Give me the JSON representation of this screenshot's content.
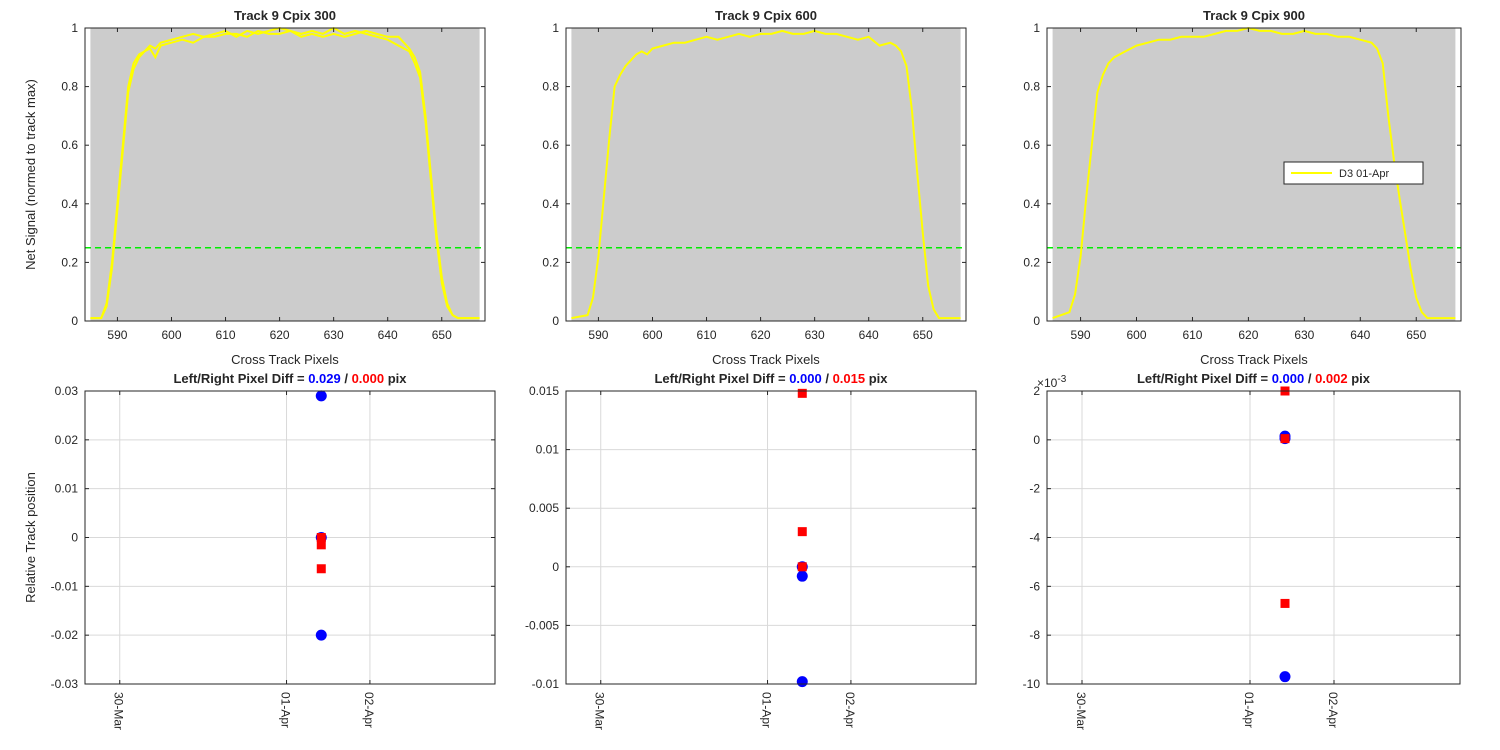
{
  "colors": {
    "signal": "#ffff00",
    "threshold": "#00ee00",
    "band": "#cccccc",
    "left": "#0000ff",
    "right": "#ff0000",
    "grid": "#d9d9d9",
    "axes": "#262626"
  },
  "chart_data": [
    {
      "type": "line",
      "title": "Track 9  Cpix 300",
      "xlabel": "Cross Track Pixels",
      "ylabel": "Net Signal (normed to track max)",
      "xlim": [
        584,
        658
      ],
      "ylim": [
        0,
        1
      ],
      "xticks": [
        590,
        600,
        610,
        620,
        630,
        640,
        650
      ],
      "yticks": [
        0,
        0.2,
        0.4,
        0.6,
        0.8,
        1
      ],
      "tick_labels_y": [
        "0",
        "0.2",
        "0.4",
        "0.6",
        "0.8",
        "1"
      ],
      "signal_band": [
        585,
        657
      ],
      "threshold": 0.25,
      "series": [
        {
          "x": [
            585,
            587,
            588,
            589,
            590,
            591,
            592,
            593,
            594,
            595,
            596,
            597,
            598,
            600,
            602,
            604,
            606,
            608,
            610,
            612,
            614,
            616,
            618,
            620,
            622,
            624,
            626,
            628,
            630,
            632,
            634,
            636,
            638,
            640,
            642,
            643,
            644,
            645,
            646,
            647,
            648,
            649,
            650,
            651,
            652,
            653,
            655,
            657
          ],
          "y": [
            0.01,
            0.01,
            0.06,
            0.2,
            0.4,
            0.6,
            0.8,
            0.88,
            0.91,
            0.92,
            0.93,
            0.9,
            0.94,
            0.95,
            0.96,
            0.95,
            0.97,
            0.97,
            0.98,
            0.98,
            0.97,
            0.99,
            0.98,
            0.98,
            0.99,
            0.97,
            0.98,
            0.97,
            0.98,
            0.97,
            0.98,
            0.99,
            0.98,
            0.97,
            0.97,
            0.95,
            0.93,
            0.9,
            0.85,
            0.7,
            0.5,
            0.3,
            0.15,
            0.06,
            0.02,
            0.01,
            0.01,
            0.01
          ]
        },
        {
          "x": [
            585,
            587,
            588,
            589,
            590,
            591,
            592,
            593,
            594,
            595,
            596,
            597,
            598,
            600,
            602,
            604,
            606,
            608,
            610,
            612,
            614,
            616,
            618,
            620,
            622,
            624,
            626,
            628,
            630,
            632,
            634,
            636,
            638,
            640,
            642,
            643,
            644,
            645,
            646,
            647,
            648,
            649,
            650,
            651,
            652,
            653,
            655,
            657
          ],
          "y": [
            0.01,
            0.01,
            0.05,
            0.18,
            0.38,
            0.58,
            0.78,
            0.86,
            0.9,
            0.92,
            0.94,
            0.93,
            0.95,
            0.96,
            0.97,
            0.98,
            0.97,
            0.98,
            0.99,
            0.97,
            0.99,
            0.98,
            0.99,
            1.0,
            0.99,
            0.98,
            0.99,
            0.98,
            1.0,
            0.98,
            0.99,
            0.98,
            0.97,
            0.96,
            0.94,
            0.93,
            0.92,
            0.88,
            0.83,
            0.68,
            0.48,
            0.28,
            0.13,
            0.05,
            0.02,
            0.01,
            0.01,
            0.01
          ]
        }
      ]
    },
    {
      "type": "line",
      "title": "Track 9  Cpix 600",
      "xlabel": "Cross Track Pixels",
      "ylabel": "",
      "xlim": [
        584,
        658
      ],
      "ylim": [
        0,
        1
      ],
      "xticks": [
        590,
        600,
        610,
        620,
        630,
        640,
        650
      ],
      "yticks": [
        0,
        0.2,
        0.4,
        0.6,
        0.8,
        1
      ],
      "tick_labels_y": [
        "0",
        "0.2",
        "0.4",
        "0.6",
        "0.8",
        "1"
      ],
      "signal_band": [
        585,
        657
      ],
      "threshold": 0.25,
      "series": [
        {
          "x": [
            585,
            588,
            589,
            590,
            591,
            592,
            593,
            594,
            595,
            596,
            597,
            598,
            599,
            600,
            602,
            604,
            606,
            608,
            610,
            612,
            614,
            616,
            618,
            620,
            622,
            624,
            626,
            628,
            630,
            632,
            634,
            636,
            638,
            640,
            642,
            644,
            645,
            646,
            647,
            648,
            649,
            650,
            651,
            652,
            653,
            655,
            657
          ],
          "y": [
            0.01,
            0.02,
            0.08,
            0.22,
            0.42,
            0.62,
            0.8,
            0.84,
            0.87,
            0.89,
            0.91,
            0.92,
            0.91,
            0.93,
            0.94,
            0.95,
            0.95,
            0.96,
            0.97,
            0.96,
            0.97,
            0.98,
            0.97,
            0.98,
            0.98,
            0.99,
            0.98,
            0.98,
            0.99,
            0.98,
            0.98,
            0.97,
            0.96,
            0.97,
            0.94,
            0.95,
            0.94,
            0.92,
            0.87,
            0.72,
            0.5,
            0.3,
            0.12,
            0.04,
            0.01,
            0.01,
            0.01
          ]
        }
      ]
    },
    {
      "type": "line",
      "title": "Track 9  Cpix 900",
      "xlabel": "Cross Track Pixels",
      "ylabel": "",
      "xlim": [
        584,
        658
      ],
      "ylim": [
        0,
        1
      ],
      "xticks": [
        590,
        600,
        610,
        620,
        630,
        640,
        650
      ],
      "yticks": [
        0,
        0.2,
        0.4,
        0.6,
        0.8,
        1
      ],
      "tick_labels_y": [
        "0",
        "0.2",
        "0.4",
        "0.6",
        "0.8",
        "1"
      ],
      "signal_band": [
        585,
        657
      ],
      "threshold": 0.25,
      "legend": {
        "entries": [
          "D3 01-Apr"
        ],
        "location": "east"
      },
      "series": [
        {
          "name": "D3 01-Apr",
          "x": [
            585,
            588,
            589,
            590,
            591,
            592,
            593,
            594,
            595,
            596,
            597,
            598,
            599,
            600,
            602,
            604,
            606,
            608,
            610,
            612,
            614,
            616,
            618,
            620,
            622,
            624,
            626,
            628,
            630,
            632,
            634,
            636,
            638,
            640,
            642,
            643,
            644,
            645,
            646,
            647,
            648,
            649,
            650,
            651,
            652,
            653,
            655,
            657
          ],
          "y": [
            0.01,
            0.03,
            0.09,
            0.22,
            0.42,
            0.6,
            0.78,
            0.84,
            0.88,
            0.9,
            0.91,
            0.92,
            0.93,
            0.94,
            0.95,
            0.96,
            0.96,
            0.97,
            0.97,
            0.97,
            0.98,
            0.99,
            0.99,
            1.0,
            0.99,
            0.99,
            0.98,
            0.98,
            0.99,
            0.98,
            0.98,
            0.97,
            0.97,
            0.96,
            0.95,
            0.93,
            0.88,
            0.7,
            0.55,
            0.42,
            0.3,
            0.18,
            0.08,
            0.03,
            0.01,
            0.01,
            0.01,
            0.01
          ]
        }
      ]
    },
    {
      "type": "scatter",
      "title_parts": [
        {
          "text": "Left/Right Pixel Diff = ",
          "color": "#262626"
        },
        {
          "text": "0.029",
          "color": "#0000ff"
        },
        {
          "text": " / ",
          "color": "#262626"
        },
        {
          "text": "0.000",
          "color": "#ff0000"
        },
        {
          "text": " pix",
          "color": "#262626"
        }
      ],
      "xlabel": "",
      "ylabel": "Relative Track position",
      "xlim": [
        "29-Mar 14:00",
        "03-Apr 12:00"
      ],
      "ylim": [
        -0.03,
        0.03
      ],
      "xticks": [
        "30-Mar",
        "01-Apr",
        "02-Apr"
      ],
      "yticks": [
        -0.03,
        -0.02,
        -0.01,
        0,
        0.01,
        0.02,
        0.03
      ],
      "tick_labels_y": [
        "-0.03",
        "-0.02",
        "-0.01",
        "0",
        "0.01",
        "0.02",
        "0.03"
      ],
      "exponent_label": "",
      "series": [
        {
          "name": "left",
          "marker": "circle",
          "x": [
            "01-Apr 10:00",
            "01-Apr 10:00",
            "01-Apr 10:00"
          ],
          "y": [
            0.029,
            0.0,
            -0.02
          ]
        },
        {
          "name": "right",
          "marker": "square",
          "x": [
            "01-Apr 10:00",
            "01-Apr 10:00",
            "01-Apr 10:00"
          ],
          "y": [
            0.0,
            -0.0015,
            -0.0064
          ]
        }
      ]
    },
    {
      "type": "scatter",
      "title_parts": [
        {
          "text": "Left/Right Pixel Diff = ",
          "color": "#262626"
        },
        {
          "text": "0.000",
          "color": "#0000ff"
        },
        {
          "text": " / ",
          "color": "#262626"
        },
        {
          "text": "0.015",
          "color": "#ff0000"
        },
        {
          "text": " pix",
          "color": "#262626"
        }
      ],
      "xlabel": "",
      "ylabel": "",
      "xlim": [
        "29-Mar 14:00",
        "03-Apr 12:00"
      ],
      "ylim": [
        -0.01,
        0.015
      ],
      "xticks": [
        "30-Mar",
        "01-Apr",
        "02-Apr"
      ],
      "yticks": [
        -0.01,
        -0.005,
        0,
        0.005,
        0.01,
        0.015
      ],
      "tick_labels_y": [
        "-0.01",
        "-0.005",
        "0",
        "0.005",
        "0.01",
        "0.015"
      ],
      "exponent_label": "",
      "series": [
        {
          "name": "left",
          "marker": "circle",
          "x": [
            "01-Apr 10:00",
            "01-Apr 10:00",
            "01-Apr 10:00"
          ],
          "y": [
            0.0,
            -0.0008,
            -0.0098
          ]
        },
        {
          "name": "right",
          "marker": "square",
          "x": [
            "01-Apr 10:00",
            "01-Apr 10:00",
            "01-Apr 10:00"
          ],
          "y": [
            0.0148,
            0.003,
            0.0
          ]
        }
      ]
    },
    {
      "type": "scatter",
      "title_parts": [
        {
          "text": "Left/Right Pixel Diff = ",
          "color": "#262626"
        },
        {
          "text": "0.000",
          "color": "#0000ff"
        },
        {
          "text": " / ",
          "color": "#262626"
        },
        {
          "text": "0.002",
          "color": "#ff0000"
        },
        {
          "text": " pix",
          "color": "#262626"
        }
      ],
      "xlabel": "",
      "ylabel": "",
      "xlim": [
        "29-Mar 14:00",
        "03-Apr 12:00"
      ],
      "ylim": [
        -0.01,
        0.002
      ],
      "xticks": [
        "30-Mar",
        "01-Apr",
        "02-Apr"
      ],
      "yticks": [
        -0.01,
        -0.008,
        -0.006,
        -0.004,
        -0.002,
        0,
        0.002
      ],
      "tick_labels_y": [
        "-10",
        "-8",
        "-6",
        "-4",
        "-2",
        "0",
        "2"
      ],
      "exponent_label": "×10",
      "exponent_power": "-3",
      "series": [
        {
          "name": "left",
          "marker": "circle",
          "x": [
            "01-Apr 10:00",
            "01-Apr 10:00",
            "01-Apr 10:00"
          ],
          "y": [
            0.00015,
            5e-05,
            -0.0097
          ]
        },
        {
          "name": "right",
          "marker": "square",
          "x": [
            "01-Apr 10:00",
            "01-Apr 10:00",
            "01-Apr 10:00"
          ],
          "y": [
            0.002,
            5e-05,
            -0.0067
          ]
        }
      ]
    }
  ]
}
